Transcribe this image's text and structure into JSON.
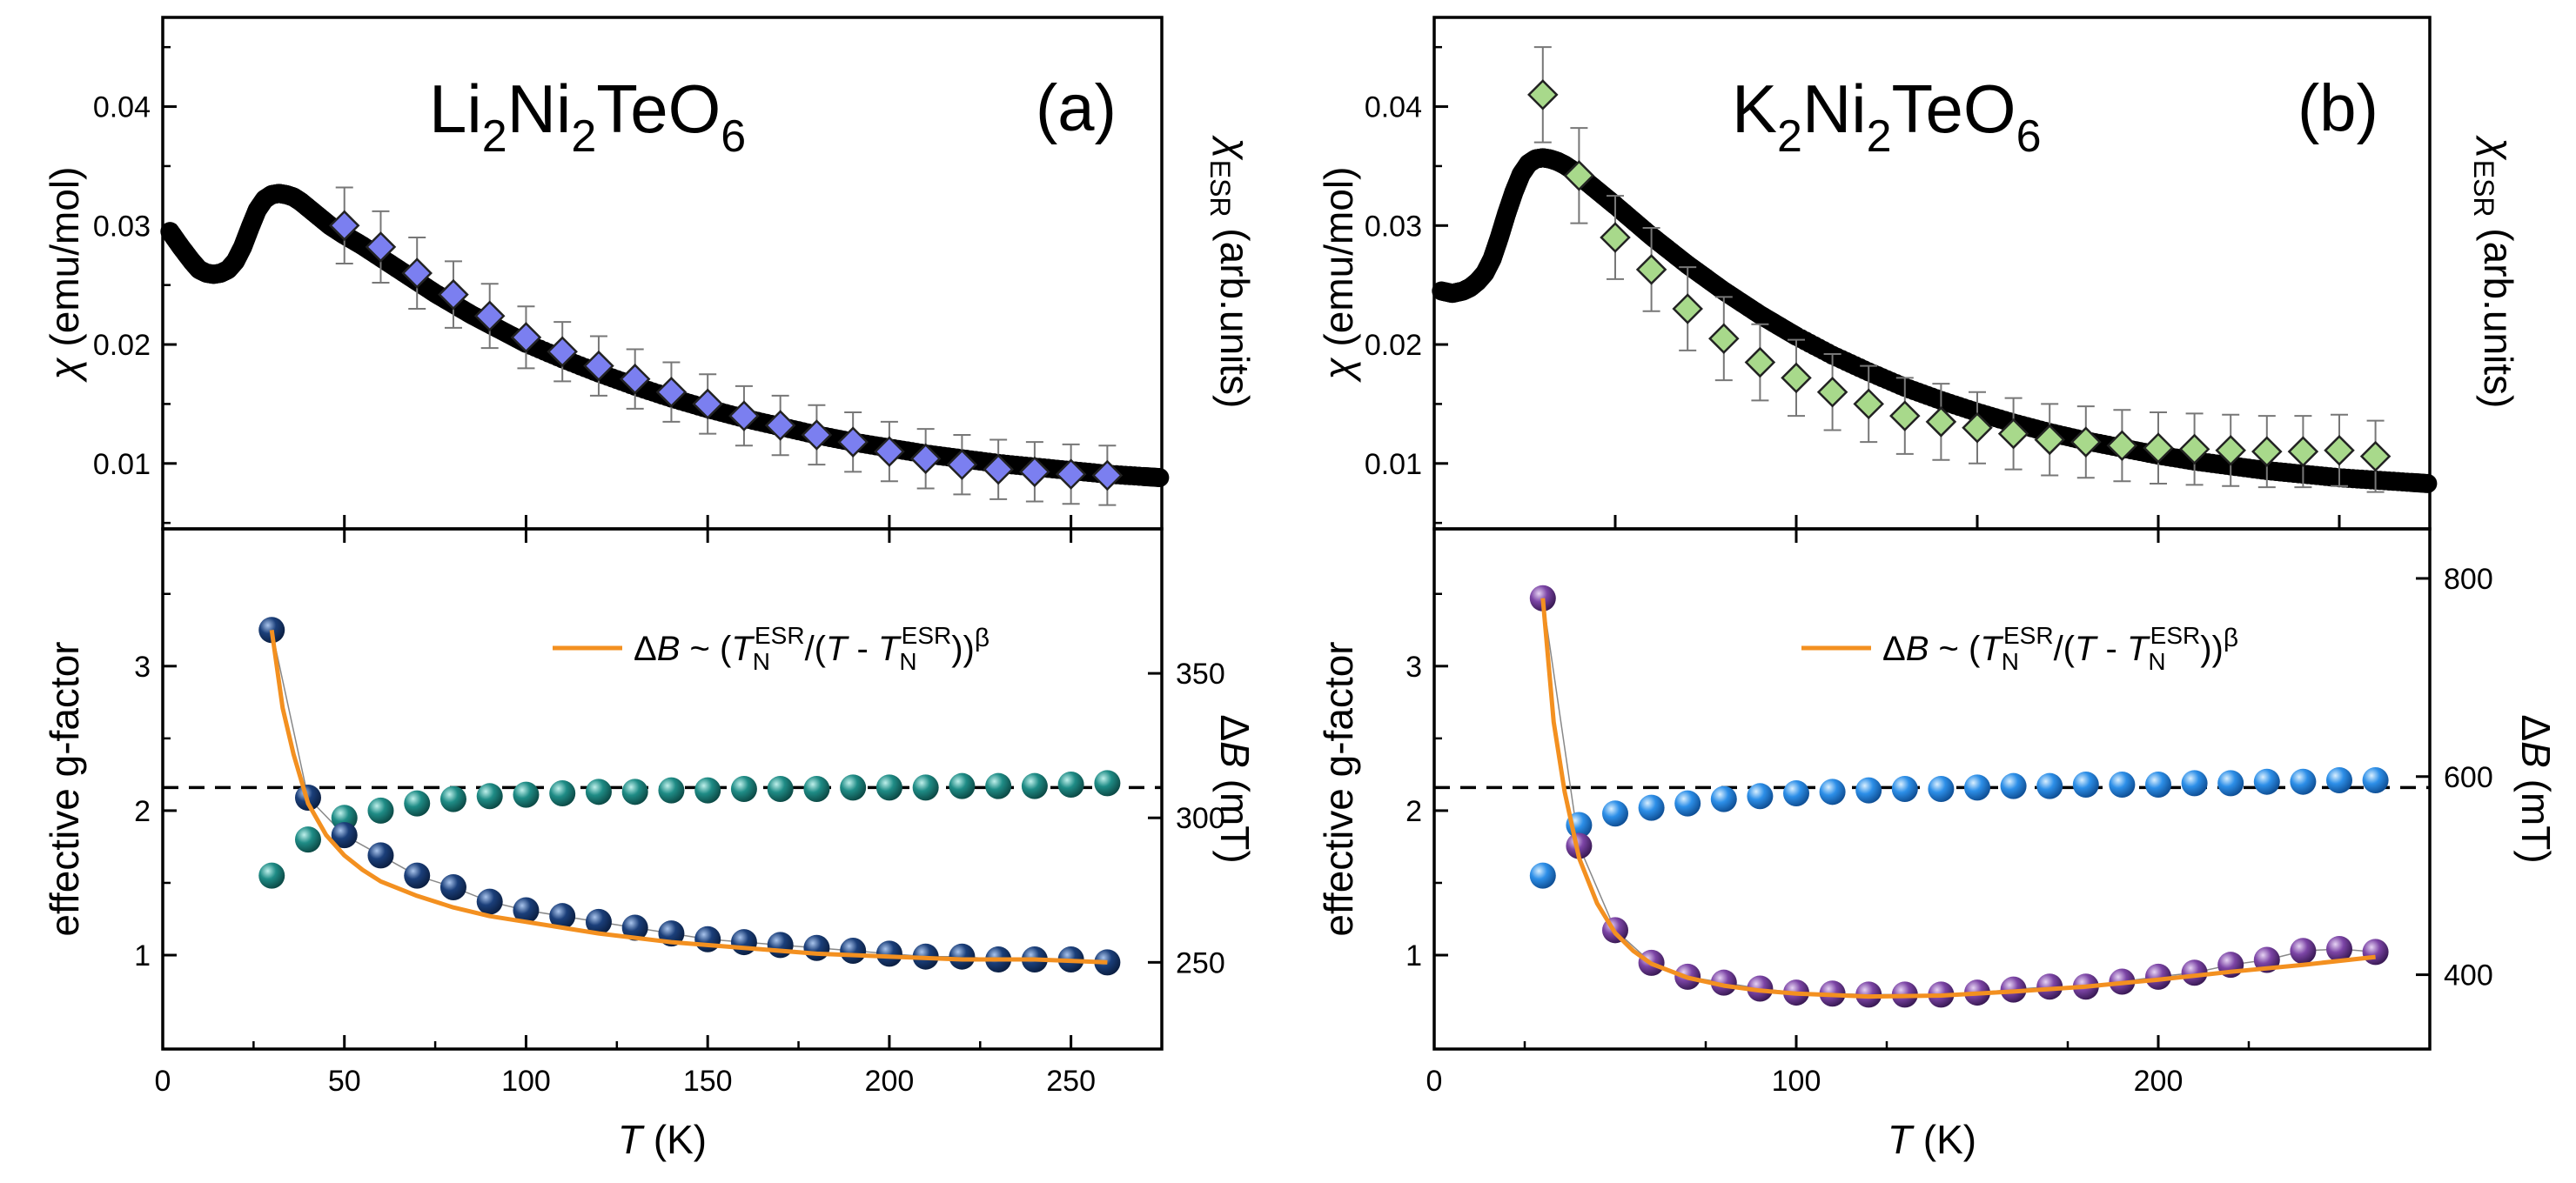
{
  "chart_data": [
    {
      "panel": "a-top",
      "type": "scatter",
      "panel_label": "(a)",
      "title": {
        "base1": "Li",
        "sub1": "2",
        "base2": "Ni",
        "sub2": "2",
        "base3": "TeO",
        "sub3": "6"
      },
      "xlim": [
        0,
        275
      ],
      "ylim": [
        0.0045,
        0.0475
      ],
      "yticks": [
        0.01,
        0.02,
        0.03,
        0.04
      ],
      "ytick_labels": [
        "0.01",
        "0.02",
        "0.03",
        "0.04"
      ],
      "ylabel": {
        "symbol": "χ",
        "rest": " (emu/mol)"
      },
      "ylabel_right": {
        "symbol": "χ",
        "sub": "ESR",
        "rest": " (arb.units)"
      },
      "series": [
        {
          "name": "chi",
          "color": "#000000",
          "x": [
            2,
            5,
            8,
            10,
            12,
            14,
            16,
            18,
            20,
            22,
            24,
            26,
            28,
            30,
            32,
            34,
            36,
            38,
            40,
            42,
            44,
            46,
            48,
            50,
            55,
            60,
            65,
            70,
            75,
            80,
            85,
            90,
            95,
            100,
            110,
            120,
            130,
            140,
            150,
            160,
            170,
            180,
            190,
            200,
            210,
            220,
            230,
            240,
            250,
            260,
            270,
            275
          ],
          "y": [
            0.0295,
            0.0282,
            0.027,
            0.0263,
            0.026,
            0.0259,
            0.026,
            0.0263,
            0.027,
            0.0282,
            0.0298,
            0.0313,
            0.0322,
            0.0326,
            0.0327,
            0.0326,
            0.0324,
            0.032,
            0.0315,
            0.031,
            0.0305,
            0.03,
            0.0296,
            0.0292,
            0.0283,
            0.0273,
            0.0263,
            0.0253,
            0.0243,
            0.0234,
            0.0225,
            0.0217,
            0.0209,
            0.0201,
            0.0188,
            0.0176,
            0.0165,
            0.0155,
            0.0146,
            0.0138,
            0.0131,
            0.0124,
            0.0118,
            0.0113,
            0.0108,
            0.0104,
            0.01,
            0.0097,
            0.0094,
            0.0091,
            0.0089,
            0.0088
          ]
        },
        {
          "name": "chi_ESR",
          "color": "#7b7ff0",
          "x": [
            50,
            60,
            70,
            80,
            90,
            100,
            110,
            120,
            130,
            140,
            150,
            160,
            170,
            180,
            190,
            200,
            210,
            220,
            230,
            240,
            250,
            260
          ],
          "y": [
            0.03,
            0.0282,
            0.026,
            0.0242,
            0.0224,
            0.0206,
            0.0194,
            0.0182,
            0.0171,
            0.016,
            0.015,
            0.014,
            0.0132,
            0.0124,
            0.0118,
            0.011,
            0.0104,
            0.0099,
            0.0095,
            0.0093,
            0.0091,
            0.009
          ],
          "err": [
            0.0032,
            0.003,
            0.003,
            0.0028,
            0.0027,
            0.0026,
            0.0025,
            0.0025,
            0.0025,
            0.0025,
            0.0025,
            0.0025,
            0.0025,
            0.0025,
            0.0025,
            0.0025,
            0.0025,
            0.0025,
            0.0025,
            0.0025,
            0.0025,
            0.0025
          ]
        }
      ]
    },
    {
      "panel": "a-bottom",
      "type": "scatter",
      "xlim": [
        0,
        275
      ],
      "ylim": [
        0.35,
        3.95
      ],
      "xticks": [
        0,
        50,
        100,
        150,
        200,
        250
      ],
      "xtick_labels": [
        "0",
        "50",
        "100",
        "150",
        "200",
        "250"
      ],
      "yticks": [
        1,
        2,
        3
      ],
      "ytick_labels": [
        "1",
        "2",
        "3"
      ],
      "ylabel": "effective g-factor",
      "y2lim": [
        220,
        400
      ],
      "y2ticks": [
        250,
        300,
        350
      ],
      "y2tick_labels": [
        "250",
        "300",
        "350"
      ],
      "ylabel_right": {
        "base": "Δ",
        "var": "B",
        "rest": " (mT)"
      },
      "xlabel": {
        "var": "T",
        "rest": " (K)"
      },
      "reference_line_y": 2.16,
      "legend": {
        "delta": "Δ",
        "b": "B",
        "sim": " ~ (",
        "t1": "T",
        "sub1": "N",
        "sup1": "ESR",
        "slash": "/(",
        "t2": "T",
        "minus": " - ",
        "t3": "T",
        "sub3": "N",
        "sup3": "ESR",
        "close": "))",
        "beta": "β"
      },
      "series": [
        {
          "name": "g-factor",
          "color": "#1f8c86",
          "x": [
            30,
            40,
            50,
            60,
            70,
            80,
            90,
            100,
            110,
            120,
            130,
            140,
            150,
            160,
            170,
            180,
            190,
            200,
            210,
            220,
            230,
            240,
            250,
            260
          ],
          "y": [
            1.55,
            1.8,
            1.95,
            2.0,
            2.05,
            2.08,
            2.1,
            2.11,
            2.12,
            2.13,
            2.13,
            2.14,
            2.14,
            2.15,
            2.15,
            2.15,
            2.16,
            2.16,
            2.16,
            2.17,
            2.17,
            2.17,
            2.18,
            2.19
          ]
        },
        {
          "name": "linewidth",
          "color": "#1b3f7a",
          "x": [
            30,
            40,
            50,
            60,
            70,
            80,
            90,
            100,
            110,
            120,
            130,
            140,
            150,
            160,
            170,
            180,
            190,
            200,
            210,
            220,
            230,
            240,
            250,
            260
          ],
          "y": [
            365,
            307,
            294,
            287,
            280,
            276,
            271,
            268,
            266,
            264,
            262,
            260,
            258,
            257,
            256,
            255,
            254,
            253,
            252,
            252,
            251,
            251,
            251,
            250
          ]
        },
        {
          "name": "fit",
          "color": "#f39020",
          "x": [
            30,
            33,
            36,
            40,
            45,
            50,
            55,
            60,
            70,
            80,
            90,
            100,
            120,
            140,
            160,
            180,
            200,
            220,
            240,
            260
          ],
          "y": [
            365,
            338,
            322,
            305,
            294,
            287,
            282,
            278,
            273,
            269,
            266,
            264,
            260,
            257,
            255,
            253,
            252,
            251,
            251,
            250
          ]
        }
      ]
    },
    {
      "panel": "b-top",
      "type": "scatter",
      "panel_label": "(b)",
      "title": {
        "base1": "K",
        "sub1": "2",
        "base2": "Ni",
        "sub2": "2",
        "base3": "TeO",
        "sub3": "6"
      },
      "xlim": [
        0,
        275
      ],
      "ylim": [
        0.0045,
        0.0475
      ],
      "yticks": [
        0.01,
        0.02,
        0.03,
        0.04
      ],
      "ytick_labels": [
        "0.01",
        "0.02",
        "0.03",
        "0.04"
      ],
      "ylabel": {
        "symbol": "χ",
        "rest": " (emu/mol)"
      },
      "ylabel_right": {
        "symbol": "χ",
        "sub": "ESR",
        "rest": " (arb.units)"
      },
      "series": [
        {
          "name": "chi",
          "color": "#000000",
          "x": [
            2,
            5,
            8,
            10,
            12,
            14,
            16,
            18,
            20,
            22,
            24,
            26,
            28,
            30,
            32,
            34,
            36,
            38,
            40,
            42,
            44,
            46,
            48,
            50,
            55,
            60,
            65,
            70,
            75,
            80,
            85,
            90,
            95,
            100,
            110,
            120,
            130,
            140,
            150,
            160,
            170,
            180,
            190,
            200,
            210,
            220,
            230,
            240,
            250,
            260,
            270,
            275
          ],
          "y": [
            0.0245,
            0.0243,
            0.0245,
            0.0248,
            0.0253,
            0.026,
            0.0272,
            0.029,
            0.031,
            0.0328,
            0.0343,
            0.0352,
            0.0356,
            0.0357,
            0.0356,
            0.0354,
            0.0351,
            0.0347,
            0.0342,
            0.0337,
            0.0332,
            0.0327,
            0.0322,
            0.0317,
            0.0304,
            0.0291,
            0.0279,
            0.0267,
            0.0256,
            0.0245,
            0.0235,
            0.0225,
            0.0216,
            0.0207,
            0.0191,
            0.0177,
            0.0164,
            0.0153,
            0.0143,
            0.0134,
            0.0126,
            0.0119,
            0.0113,
            0.0107,
            0.0102,
            0.0098,
            0.0094,
            0.0091,
            0.0088,
            0.0086,
            0.0084,
            0.0083
          ]
        },
        {
          "name": "chi_ESR",
          "color": "#a8d98b",
          "x": [
            30,
            40,
            50,
            60,
            70,
            80,
            90,
            100,
            110,
            120,
            130,
            140,
            150,
            160,
            170,
            180,
            190,
            200,
            210,
            220,
            230,
            240,
            250,
            260
          ],
          "y": [
            0.041,
            0.0342,
            0.029,
            0.0263,
            0.023,
            0.0205,
            0.0185,
            0.0172,
            0.016,
            0.015,
            0.014,
            0.0135,
            0.013,
            0.0125,
            0.012,
            0.0118,
            0.0115,
            0.0113,
            0.0112,
            0.0111,
            0.011,
            0.011,
            0.0111,
            0.0106
          ],
          "err": [
            0.004,
            0.004,
            0.0035,
            0.0035,
            0.0035,
            0.0035,
            0.0032,
            0.0032,
            0.0032,
            0.0032,
            0.0032,
            0.0032,
            0.003,
            0.003,
            0.003,
            0.003,
            0.003,
            0.003,
            0.003,
            0.003,
            0.003,
            0.003,
            0.003,
            0.003
          ]
        }
      ]
    },
    {
      "panel": "b-bottom",
      "type": "scatter",
      "xlim": [
        0,
        275
      ],
      "ylim": [
        0.35,
        3.95
      ],
      "xticks": [
        0,
        100,
        200
      ],
      "xtick_labels": [
        "0",
        "100",
        "200"
      ],
      "yticks": [
        1,
        2,
        3
      ],
      "ytick_labels": [
        "1",
        "2",
        "3"
      ],
      "ylabel": "effective g-factor",
      "y2lim": [
        325,
        850
      ],
      "y2ticks": [
        400,
        600,
        800
      ],
      "y2tick_labels": [
        "400",
        "600",
        "800"
      ],
      "ylabel_right": {
        "base": "Δ",
        "var": "B",
        "rest": " (mT)"
      },
      "xlabel": {
        "var": "T",
        "rest": " (K)"
      },
      "reference_line_y": 2.16,
      "legend": {
        "delta": "Δ",
        "b": "B",
        "sim": " ~ (",
        "t1": "T",
        "sub1": "N",
        "sup1": "ESR",
        "slash": "/(",
        "t2": "T",
        "minus": " - ",
        "t3": "T",
        "sub3": "N",
        "sup3": "ESR",
        "close": "))",
        "beta": "β"
      },
      "series": [
        {
          "name": "g-factor",
          "color": "#2d8fe8",
          "x": [
            30,
            40,
            50,
            60,
            70,
            80,
            90,
            100,
            110,
            120,
            130,
            140,
            150,
            160,
            170,
            180,
            190,
            200,
            210,
            220,
            230,
            240,
            250,
            260
          ],
          "y": [
            1.55,
            1.9,
            1.98,
            2.02,
            2.05,
            2.08,
            2.1,
            2.12,
            2.13,
            2.14,
            2.15,
            2.15,
            2.16,
            2.17,
            2.17,
            2.18,
            2.18,
            2.18,
            2.19,
            2.19,
            2.2,
            2.2,
            2.21,
            2.21
          ]
        },
        {
          "name": "linewidth",
          "color": "#7c45a6",
          "x": [
            30,
            40,
            50,
            60,
            70,
            80,
            90,
            100,
            110,
            120,
            130,
            140,
            150,
            160,
            170,
            180,
            190,
            200,
            210,
            220,
            230,
            240,
            250,
            260
          ],
          "y": [
            780,
            530,
            445,
            412,
            398,
            392,
            386,
            382,
            381,
            380,
            380,
            380,
            382,
            385,
            388,
            388,
            393,
            398,
            402,
            410,
            415,
            424,
            426,
            423
          ]
        },
        {
          "name": "fit",
          "color": "#f39020",
          "x": [
            30,
            33,
            36,
            40,
            45,
            50,
            55,
            60,
            70,
            80,
            90,
            100,
            120,
            140,
            160,
            180,
            200,
            220,
            240,
            260
          ],
          "y": [
            780,
            655,
            585,
            518,
            472,
            442,
            424,
            411,
            397,
            389,
            384,
            381,
            378,
            379,
            383,
            388,
            395,
            403,
            410,
            418
          ]
        }
      ]
    }
  ]
}
